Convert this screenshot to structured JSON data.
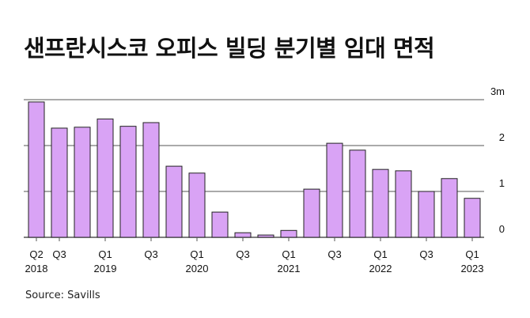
{
  "title": "샌프란시스코 오피스 빌딩 분기별 임대 면적",
  "source": "Source: Savills",
  "colors": {
    "bar": "#d9a3f5",
    "bar_stroke": "#222222",
    "grid": "#555555",
    "text": "#111111"
  },
  "chart_data": {
    "type": "bar",
    "title": "샌프란시스코 오피스 빌딩 분기별 임대 면적",
    "xlabel": "",
    "ylabel": "",
    "ylim": [
      0,
      3
    ],
    "y_ticks": [
      {
        "value": 0,
        "label": "0"
      },
      {
        "value": 1,
        "label": "1"
      },
      {
        "value": 2,
        "label": "2"
      },
      {
        "value": 3,
        "label": "3m"
      }
    ],
    "grid": true,
    "categories": [
      "Q2 2018",
      "Q3 2018",
      "Q4 2018",
      "Q1 2019",
      "Q2 2019",
      "Q3 2019",
      "Q4 2019",
      "Q1 2020",
      "Q2 2020",
      "Q3 2020",
      "Q4 2020",
      "Q1 2021",
      "Q2 2021",
      "Q3 2021",
      "Q4 2021",
      "Q1 2022",
      "Q2 2022",
      "Q3 2022",
      "Q4 2022",
      "Q1 2023"
    ],
    "values": [
      2.95,
      2.38,
      2.4,
      2.58,
      2.42,
      2.5,
      1.55,
      1.4,
      0.55,
      0.1,
      0.05,
      0.15,
      1.05,
      2.05,
      1.9,
      1.48,
      1.45,
      1.0,
      1.28,
      0.85
    ],
    "x_tick_labels": [
      {
        "index": 0,
        "quarter": "Q2",
        "year": "2018"
      },
      {
        "index": 1,
        "quarter": "Q3",
        "year": ""
      },
      {
        "index": 3,
        "quarter": "Q1",
        "year": "2019"
      },
      {
        "index": 5,
        "quarter": "Q3",
        "year": ""
      },
      {
        "index": 7,
        "quarter": "Q1",
        "year": "2020"
      },
      {
        "index": 9,
        "quarter": "Q3",
        "year": ""
      },
      {
        "index": 11,
        "quarter": "Q1",
        "year": "2021"
      },
      {
        "index": 13,
        "quarter": "Q3",
        "year": ""
      },
      {
        "index": 15,
        "quarter": "Q1",
        "year": "2022"
      },
      {
        "index": 17,
        "quarter": "Q3",
        "year": ""
      },
      {
        "index": 19,
        "quarter": "Q1",
        "year": "2023"
      }
    ]
  }
}
